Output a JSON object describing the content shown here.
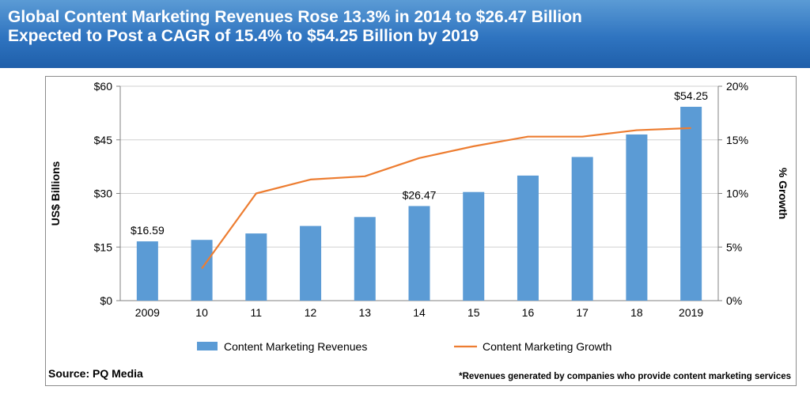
{
  "header": {
    "title_line1": "Global Content Marketing Revenues Rose 13.3% in 2014 to $26.47 Billion",
    "title_line2": "Expected to Post a CAGR of 15.4% to $54.25 Billion by 2019",
    "background_color": "#2f74c0"
  },
  "footer": {
    "source": "Source: PQ Media",
    "note": "*Revenues generated by companies who provide content marketing services"
  },
  "chart_data": {
    "type": "bar",
    "categories": [
      "2009",
      "10",
      "11",
      "12",
      "13",
      "14",
      "15",
      "16",
      "17",
      "18",
      "2019"
    ],
    "series": [
      {
        "name": "Content Marketing Revenues",
        "type": "bar",
        "axis": "left",
        "color": "#5b9bd5",
        "values": [
          16.59,
          17.0,
          18.8,
          20.9,
          23.4,
          26.47,
          30.4,
          35.0,
          40.2,
          46.5,
          54.25
        ]
      },
      {
        "name": "Content Marketing Growth",
        "type": "line",
        "axis": "right",
        "color": "#ed7d31",
        "values": [
          null,
          3.0,
          10.0,
          11.3,
          11.6,
          13.3,
          14.4,
          15.3,
          15.3,
          15.9,
          16.1
        ]
      }
    ],
    "data_labels": [
      {
        "index": 0,
        "text": "$16.59"
      },
      {
        "index": 5,
        "text": "$26.47"
      },
      {
        "index": 10,
        "text": "$54.25"
      }
    ],
    "ylabel": "US$ Billions",
    "y2label": "% Growth",
    "ylim": [
      0,
      60
    ],
    "y2lim": [
      0,
      20
    ],
    "yticks": [
      "$0",
      "$15",
      "$30",
      "$45",
      "$60"
    ],
    "y2ticks": [
      "0%",
      "5%",
      "10%",
      "15%",
      "20%"
    ],
    "grid": true,
    "legend": "bottom"
  }
}
